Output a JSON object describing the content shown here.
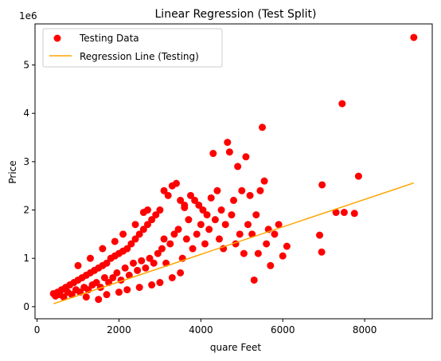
{
  "chart_data": {
    "type": "scatter",
    "title": "Linear Regression (Test Split)",
    "xlabel": "quare Feet",
    "ylabel": "Price",
    "y_offset_label": "1e6",
    "xlim": [
      -50,
      9650
    ],
    "ylim": [
      -0.25,
      5.85
    ],
    "x_ticks": [
      0,
      2000,
      4000,
      6000,
      8000
    ],
    "x_tick_labels": [
      "0",
      "2000",
      "4000",
      "6000",
      "8000"
    ],
    "y_ticks": [
      0,
      1,
      2,
      3,
      4,
      5
    ],
    "y_tick_labels": [
      "0",
      "1",
      "2",
      "3",
      "4",
      "5"
    ],
    "grid": false,
    "legend_position": "top-left",
    "colors": {
      "points": "#ff0000",
      "line": "#ffa500"
    },
    "series": [
      {
        "name": "Testing Data",
        "kind": "scatter",
        "note": "Approximate sample read from the figure; dense cluster below 4000 sq ft is represented by representative points.",
        "points": [
          [
            400,
            0.27
          ],
          [
            450,
            0.22
          ],
          [
            500,
            0.3
          ],
          [
            550,
            0.25
          ],
          [
            600,
            0.35
          ],
          [
            650,
            0.2
          ],
          [
            700,
            0.4
          ],
          [
            750,
            0.3
          ],
          [
            800,
            0.45
          ],
          [
            850,
            0.25
          ],
          [
            900,
            0.5
          ],
          [
            950,
            0.35
          ],
          [
            1000,
            0.55
          ],
          [
            1050,
            0.3
          ],
          [
            1100,
            0.6
          ],
          [
            1150,
            0.4
          ],
          [
            1200,
            0.65
          ],
          [
            1250,
            0.35
          ],
          [
            1300,
            0.7
          ],
          [
            1350,
            0.45
          ],
          [
            1400,
            0.75
          ],
          [
            1450,
            0.5
          ],
          [
            1500,
            0.8
          ],
          [
            1550,
            0.4
          ],
          [
            1600,
            0.85
          ],
          [
            1650,
            0.6
          ],
          [
            1700,
            0.9
          ],
          [
            1750,
            0.5
          ],
          [
            1800,
            1.0
          ],
          [
            1850,
            0.6
          ],
          [
            1900,
            1.05
          ],
          [
            1950,
            0.7
          ],
          [
            2000,
            1.1
          ],
          [
            2050,
            0.55
          ],
          [
            2100,
            1.15
          ],
          [
            2150,
            0.8
          ],
          [
            2200,
            1.2
          ],
          [
            2250,
            0.65
          ],
          [
            2300,
            1.3
          ],
          [
            2350,
            0.9
          ],
          [
            2400,
            1.4
          ],
          [
            2450,
            0.75
          ],
          [
            2500,
            1.5
          ],
          [
            2550,
            0.95
          ],
          [
            2600,
            1.6
          ],
          [
            2650,
            0.8
          ],
          [
            2700,
            1.7
          ],
          [
            2750,
            1.0
          ],
          [
            2800,
            1.8
          ],
          [
            2850,
            0.9
          ],
          [
            2900,
            1.9
          ],
          [
            2950,
            1.1
          ],
          [
            3000,
            2.0
          ],
          [
            3050,
            1.2
          ],
          [
            3100,
            1.4
          ],
          [
            3150,
            0.9
          ],
          [
            3200,
            2.3
          ],
          [
            3250,
            1.3
          ],
          [
            3300,
            2.5
          ],
          [
            3350,
            1.5
          ],
          [
            3400,
            2.55
          ],
          [
            3450,
            1.6
          ],
          [
            3500,
            2.2
          ],
          [
            3550,
            1.0
          ],
          [
            3600,
            2.1
          ],
          [
            3650,
            1.4
          ],
          [
            3700,
            1.8
          ],
          [
            3750,
            2.3
          ],
          [
            3800,
            1.2
          ],
          [
            3850,
            2.2
          ],
          [
            3900,
            1.5
          ],
          [
            3950,
            2.1
          ],
          [
            4000,
            1.7
          ],
          [
            4050,
            2.0
          ],
          [
            4100,
            1.3
          ],
          [
            4150,
            1.9
          ],
          [
            4200,
            1.6
          ],
          [
            4250,
            2.25
          ],
          [
            4300,
            3.17
          ],
          [
            4350,
            1.8
          ],
          [
            4400,
            2.4
          ],
          [
            4450,
            1.4
          ],
          [
            4500,
            2.0
          ],
          [
            4550,
            1.2
          ],
          [
            4600,
            1.7
          ],
          [
            4650,
            3.4
          ],
          [
            4700,
            3.2
          ],
          [
            4750,
            1.9
          ],
          [
            4800,
            2.2
          ],
          [
            4850,
            1.3
          ],
          [
            4900,
            2.9
          ],
          [
            4950,
            1.5
          ],
          [
            5000,
            2.4
          ],
          [
            5050,
            1.1
          ],
          [
            5100,
            3.1
          ],
          [
            5150,
            1.7
          ],
          [
            5200,
            2.3
          ],
          [
            5250,
            1.5
          ],
          [
            5300,
            0.55
          ],
          [
            5350,
            1.9
          ],
          [
            5400,
            1.1
          ],
          [
            5450,
            2.4
          ],
          [
            5500,
            3.71
          ],
          [
            5550,
            2.6
          ],
          [
            5600,
            1.3
          ],
          [
            5650,
            1.6
          ],
          [
            5700,
            0.85
          ],
          [
            5800,
            1.5
          ],
          [
            5900,
            1.7
          ],
          [
            6000,
            1.05
          ],
          [
            6100,
            1.25
          ],
          [
            6900,
            1.48
          ],
          [
            6950,
            1.13
          ],
          [
            6960,
            2.52
          ],
          [
            7300,
            1.95
          ],
          [
            7450,
            4.2
          ],
          [
            7500,
            1.95
          ],
          [
            7750,
            1.93
          ],
          [
            7850,
            2.7
          ],
          [
            9200,
            5.57
          ],
          [
            1200,
            0.2
          ],
          [
            1500,
            0.15
          ],
          [
            1700,
            0.25
          ],
          [
            2000,
            0.3
          ],
          [
            2200,
            0.35
          ],
          [
            2500,
            0.4
          ],
          [
            2800,
            0.45
          ],
          [
            3000,
            0.5
          ],
          [
            3300,
            0.6
          ],
          [
            3500,
            0.7
          ],
          [
            1000,
            0.85
          ],
          [
            1300,
            1.0
          ],
          [
            1600,
            1.2
          ],
          [
            1900,
            1.35
          ],
          [
            2100,
            1.5
          ],
          [
            2400,
            1.7
          ],
          [
            2600,
            1.95
          ],
          [
            2700,
            2.0
          ],
          [
            3100,
            2.4
          ],
          [
            3600,
            2.05
          ]
        ]
      },
      {
        "name": "Regression Line (Testing)",
        "kind": "line",
        "points": [
          [
            400,
            0.06
          ],
          [
            9200,
            2.56
          ]
        ]
      }
    ]
  }
}
